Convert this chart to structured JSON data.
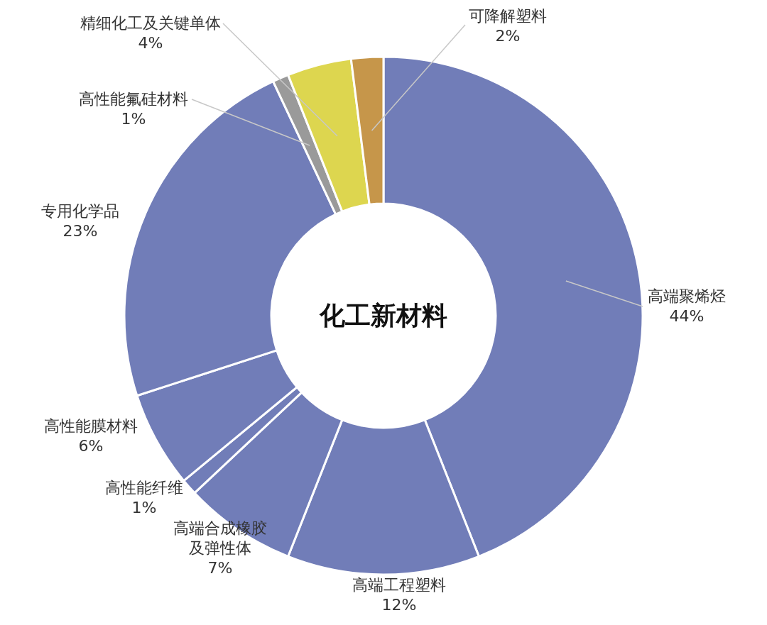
{
  "chart_data": {
    "type": "donut",
    "title": "化工新材料",
    "categories": [
      "高端聚烯烃",
      "高端工程塑料",
      "高端合成橡胶及弹性体",
      "高性能纤维",
      "高性能膜材料",
      "专用化学品",
      "高性能氟硅材料",
      "精细化工及关键单体",
      "可降解塑料"
    ],
    "values": [
      44,
      12,
      7,
      1,
      6,
      23,
      1,
      4,
      2
    ],
    "value_labels": [
      "44%",
      "12%",
      "7%",
      "1%",
      "6%",
      "23%",
      "1%",
      "4%",
      "2%"
    ],
    "colors": [
      "#717db8",
      "#717db8",
      "#717db8",
      "#717db8",
      "#717db8",
      "#717db8",
      "#9a9a9a",
      "#ddd64f",
      "#c6964a"
    ]
  }
}
